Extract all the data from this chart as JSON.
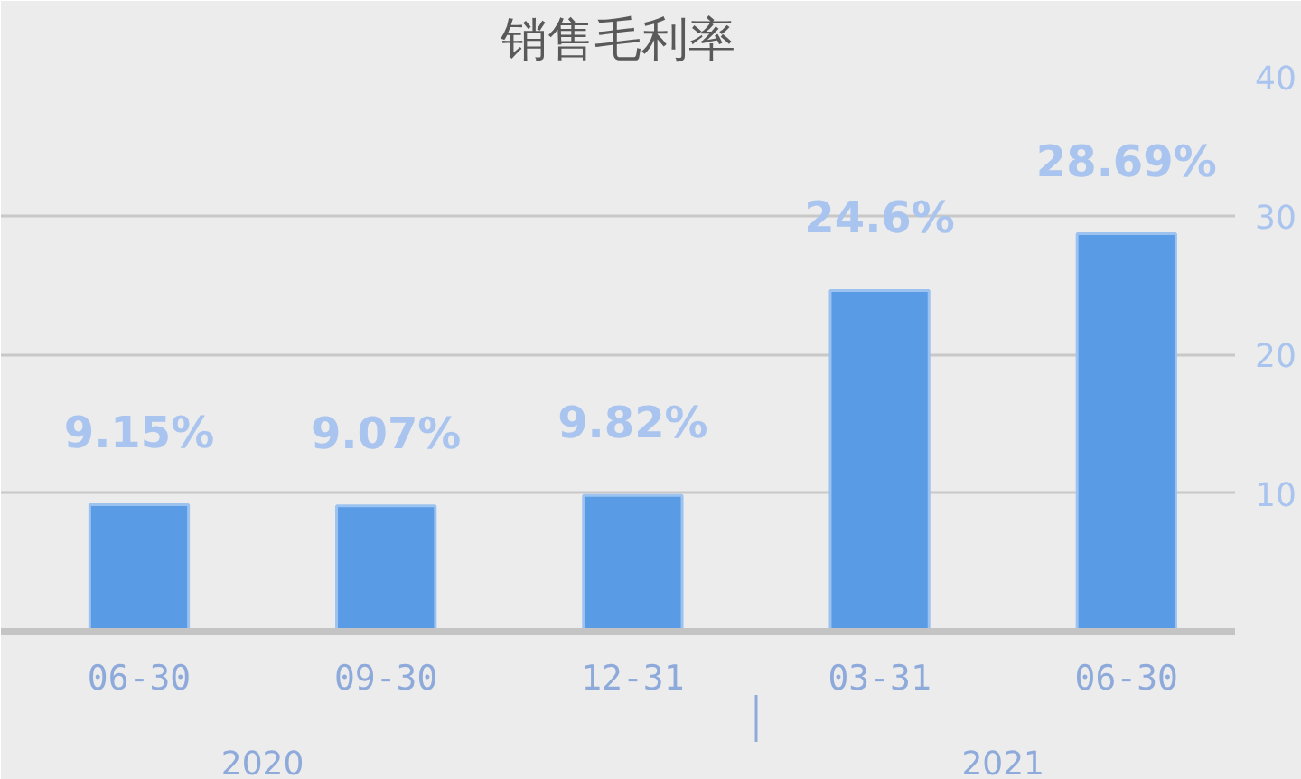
{
  "chart_data": {
    "type": "bar",
    "title": "销售毛利率",
    "categories": [
      "06-30",
      "09-30",
      "12-31",
      "03-31",
      "06-30"
    ],
    "values": [
      9.15,
      9.07,
      9.82,
      24.6,
      28.69
    ],
    "value_labels": [
      "9.15%",
      "9.07%",
      "9.82%",
      "24.6%",
      "28.69%"
    ],
    "color": "#5a9be6",
    "ylim": [
      0,
      40
    ],
    "yticks": [
      10,
      20,
      30,
      40
    ],
    "grid": "y",
    "annotations": [
      "2020",
      "2021"
    ]
  }
}
